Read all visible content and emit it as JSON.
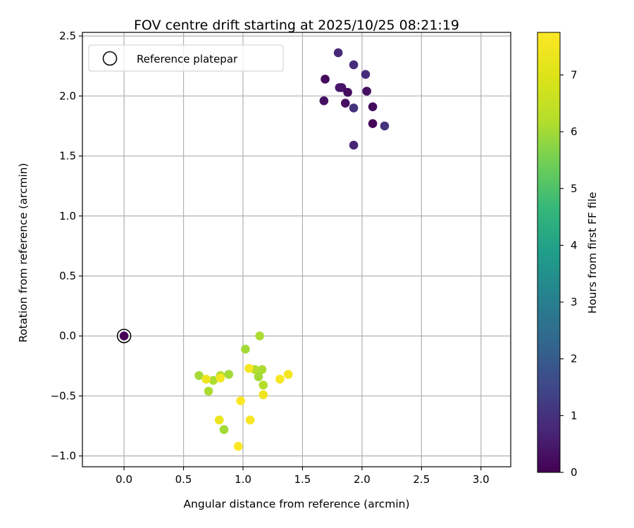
{
  "chart_data": {
    "type": "scatter",
    "title": "FOV centre drift starting at 2025/10/25 08:21:19",
    "xlabel": "Angular distance from reference (arcmin)",
    "ylabel": "Rotation from reference (arcmin)",
    "xlim": [
      -0.35,
      3.25
    ],
    "ylim": [
      -1.09,
      2.53
    ],
    "xticks": [
      0.0,
      0.5,
      1.0,
      1.5,
      2.0,
      2.5,
      3.0
    ],
    "xtick_labels": [
      "0.0",
      "0.5",
      "1.0",
      "1.5",
      "2.0",
      "2.5",
      "3.0"
    ],
    "yticks": [
      -1.0,
      -0.5,
      0.0,
      0.5,
      1.0,
      1.5,
      2.0,
      2.5
    ],
    "ytick_labels": [
      "−1.0",
      "−0.5",
      "0.0",
      "0.5",
      "1.0",
      "1.5",
      "2.0",
      "2.5"
    ],
    "grid": true,
    "legend": {
      "position": "top-left",
      "entries": [
        "Reference platepar"
      ]
    },
    "reference_point": {
      "x": 0.0,
      "y": 0.0,
      "label": "Reference platepar"
    },
    "colorbar": {
      "label": "Hours from first FF file",
      "range": [
        0,
        7.75
      ],
      "ticks": [
        0,
        1,
        2,
        3,
        4,
        5,
        6,
        7
      ],
      "tick_labels": [
        "0",
        "1",
        "2",
        "3",
        "4",
        "5",
        "6",
        "7"
      ],
      "colormap": "viridis"
    },
    "points": [
      {
        "x": 0.0,
        "y": 0.0,
        "c": 0.1
      },
      {
        "x": 1.69,
        "y": 2.14,
        "c": 0.2
      },
      {
        "x": 1.68,
        "y": 1.96,
        "c": 0.3
      },
      {
        "x": 1.8,
        "y": 2.36,
        "c": 0.8
      },
      {
        "x": 1.81,
        "y": 2.07,
        "c": 0.5
      },
      {
        "x": 1.83,
        "y": 2.07,
        "c": 0.4
      },
      {
        "x": 1.86,
        "y": 1.94,
        "c": 0.3
      },
      {
        "x": 1.88,
        "y": 2.03,
        "c": 0.2
      },
      {
        "x": 1.93,
        "y": 2.26,
        "c": 0.9
      },
      {
        "x": 1.93,
        "y": 1.9,
        "c": 1.0
      },
      {
        "x": 1.93,
        "y": 1.59,
        "c": 0.7
      },
      {
        "x": 2.03,
        "y": 2.18,
        "c": 0.9
      },
      {
        "x": 2.04,
        "y": 2.04,
        "c": 0.3
      },
      {
        "x": 2.09,
        "y": 1.91,
        "c": 0.2
      },
      {
        "x": 2.09,
        "y": 1.77,
        "c": 0.1
      },
      {
        "x": 2.19,
        "y": 1.75,
        "c": 1.0
      },
      {
        "x": 1.14,
        "y": 0.0,
        "c": 6.1
      },
      {
        "x": 1.02,
        "y": -0.11,
        "c": 6.0
      },
      {
        "x": 1.1,
        "y": -0.28,
        "c": 6.2
      },
      {
        "x": 1.16,
        "y": -0.28,
        "c": 6.1
      },
      {
        "x": 1.13,
        "y": -0.34,
        "c": 6.0
      },
      {
        "x": 1.17,
        "y": -0.41,
        "c": 6.2
      },
      {
        "x": 0.63,
        "y": -0.33,
        "c": 6.0
      },
      {
        "x": 0.75,
        "y": -0.37,
        "c": 6.1
      },
      {
        "x": 0.81,
        "y": -0.33,
        "c": 6.2
      },
      {
        "x": 0.88,
        "y": -0.32,
        "c": 6.0
      },
      {
        "x": 0.71,
        "y": -0.46,
        "c": 6.1
      },
      {
        "x": 0.84,
        "y": -0.78,
        "c": 6.0
      },
      {
        "x": 1.05,
        "y": -0.27,
        "c": 7.6
      },
      {
        "x": 0.69,
        "y": -0.36,
        "c": 7.4
      },
      {
        "x": 0.81,
        "y": -0.35,
        "c": 7.5
      },
      {
        "x": 0.98,
        "y": -0.54,
        "c": 7.7
      },
      {
        "x": 1.17,
        "y": -0.49,
        "c": 7.4
      },
      {
        "x": 1.31,
        "y": -0.36,
        "c": 7.6
      },
      {
        "x": 1.38,
        "y": -0.32,
        "c": 7.5
      },
      {
        "x": 0.8,
        "y": -0.7,
        "c": 7.3
      },
      {
        "x": 1.06,
        "y": -0.7,
        "c": 7.6
      },
      {
        "x": 0.96,
        "y": -0.92,
        "c": 7.7
      }
    ]
  }
}
